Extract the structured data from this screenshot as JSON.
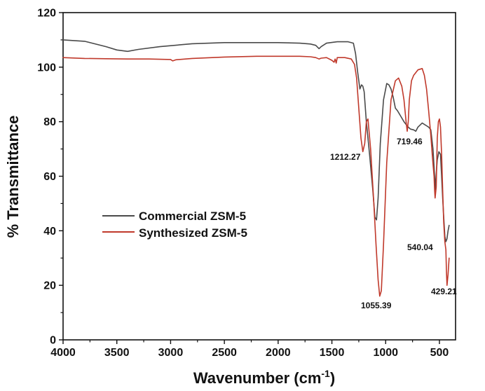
{
  "chart_data": {
    "type": "line",
    "title": "",
    "xlabel": "Wavenumber (cm",
    "xlabel_sup": "-1",
    "xlabel_tail": ")",
    "ylabel": "% Transmittance",
    "xlim": [
      4000,
      350
    ],
    "ylim": [
      0,
      120
    ],
    "x_ticks": [
      "4000",
      "3500",
      "3000",
      "2500",
      "2000",
      "1500",
      "1000",
      "500"
    ],
    "y_ticks": [
      "0",
      "20",
      "40",
      "60",
      "80",
      "100",
      "120"
    ],
    "legend": [
      "Commercial ZSM-5",
      "Synthesized ZSM-5"
    ],
    "legend_position": "center-left",
    "colors": {
      "Commercial ZSM-5": "#4a4a4a",
      "Synthesized ZSM-5": "#c0392b"
    },
    "series": [
      {
        "name": "Commercial ZSM-5",
        "x": [
          4000,
          3800,
          3600,
          3500,
          3400,
          3300,
          3100,
          2800,
          2500,
          2200,
          2000,
          1800,
          1700,
          1650,
          1620,
          1600,
          1550,
          1450,
          1350,
          1300,
          1280,
          1260,
          1240,
          1225,
          1212.27,
          1200,
          1180,
          1150,
          1120,
          1100,
          1085,
          1070,
          1050,
          1020,
          990,
          970,
          950,
          930,
          910,
          890,
          860,
          830,
          810,
          790,
          770,
          740,
          719.46,
          700,
          660,
          620,
          600,
          580,
          560,
          545,
          540.04,
          535,
          520,
          505,
          490,
          480,
          470,
          460,
          450,
          440,
          430,
          420,
          410
        ],
        "y": [
          110,
          109.5,
          107.5,
          106.3,
          105.8,
          106.5,
          107.5,
          108.6,
          109,
          109,
          109,
          108.8,
          108.5,
          108,
          106.8,
          107.5,
          108.8,
          109.3,
          109.3,
          108.8,
          105,
          98,
          92,
          93.5,
          93,
          91,
          80,
          68,
          55,
          45,
          44,
          52,
          72,
          88,
          94,
          93.5,
          92,
          89,
          85,
          84,
          82,
          80,
          79,
          78,
          77.3,
          77,
          76.5,
          78,
          79.5,
          78.5,
          78,
          77,
          70,
          60,
          55,
          58,
          66,
          69,
          68,
          60,
          52,
          45,
          38,
          36,
          37,
          40,
          42
        ]
      },
      {
        "name": "Synthesized ZSM-5",
        "x": [
          4000,
          3800,
          3600,
          3400,
          3200,
          3000,
          2980,
          2950,
          2800,
          2500,
          2200,
          2000,
          1800,
          1700,
          1650,
          1620,
          1600,
          1550,
          1500,
          1480,
          1470,
          1460,
          1450,
          1380,
          1320,
          1290,
          1270,
          1250,
          1230,
          1212.27,
          1195,
          1180,
          1165,
          1140,
          1110,
          1090,
          1070,
          1055.39,
          1040,
          1020,
          990,
          950,
          910,
          880,
          850,
          830,
          810,
          800,
          790,
          780,
          760,
          740,
          700,
          660,
          640,
          620,
          600,
          580,
          565,
          550,
          545,
          540.04,
          530,
          520,
          510,
          500,
          490,
          480,
          470,
          460,
          450,
          440,
          435,
          429.21,
          420,
          410
        ],
        "y": [
          103.5,
          103.2,
          103.1,
          103,
          103,
          102.8,
          102.3,
          102.7,
          103.2,
          103.7,
          104,
          104,
          104,
          103.8,
          103.5,
          103,
          103.3,
          103.5,
          102.5,
          101.8,
          103,
          101.5,
          103.5,
          103.5,
          103,
          101,
          96,
          85,
          74,
          69,
          72,
          80,
          81,
          70,
          50,
          35,
          22,
          16,
          18,
          35,
          65,
          88,
          95,
          96,
          93,
          88,
          80,
          76.5,
          80,
          88,
          95,
          97,
          99,
          99.5,
          97,
          92,
          84,
          75,
          67,
          60,
          55,
          52,
          56,
          74,
          80,
          81,
          78,
          68,
          55,
          43,
          36,
          33,
          25,
          20,
          24,
          30
        ]
      }
    ],
    "annotations": [
      "1212.27",
      "719.46",
      "540.04",
      "1055.39",
      "429.21"
    ]
  }
}
